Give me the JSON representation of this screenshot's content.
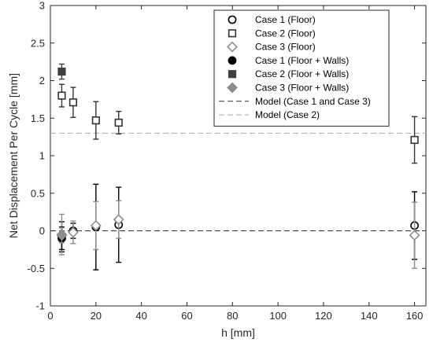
{
  "chart_data": {
    "type": "scatter",
    "xlabel": "h [mm]",
    "ylabel": "Net Displacement Per Cycle [mm]",
    "xlim": [
      0,
      165
    ],
    "ylim": [
      -1,
      3
    ],
    "xticks": [
      "0",
      "20",
      "40",
      "60",
      "80",
      "100",
      "120",
      "140",
      "160"
    ],
    "yticks": [
      "-1",
      "-0.5",
      "0",
      "0.5",
      "1",
      "1.5",
      "2",
      "2.5",
      "3"
    ],
    "grid": false,
    "legend_position": "top-right",
    "series": [
      {
        "name": "Case 1 (Floor)",
        "marker": "circle-open",
        "color": "#000000",
        "points": [
          {
            "x": 5,
            "y": -0.08,
            "err": 0.2
          },
          {
            "x": 10,
            "y": 0.0,
            "err": 0.1
          },
          {
            "x": 20,
            "y": 0.05,
            "err": 0.57
          },
          {
            "x": 30,
            "y": 0.08,
            "err": 0.5
          },
          {
            "x": 160,
            "y": 0.07,
            "err": 0.45
          }
        ]
      },
      {
        "name": "Case 2 (Floor)",
        "marker": "square-open",
        "color": "#333333",
        "points": [
          {
            "x": 5,
            "y": 1.8,
            "err": 0.15
          },
          {
            "x": 10,
            "y": 1.71,
            "err": 0.2
          },
          {
            "x": 20,
            "y": 1.47,
            "err": 0.25
          },
          {
            "x": 30,
            "y": 1.44,
            "err": 0.15
          },
          {
            "x": 160,
            "y": 1.21,
            "err": 0.31
          }
        ]
      },
      {
        "name": "Case 3 (Floor)",
        "marker": "diamond-open",
        "color": "#8c8c8c",
        "points": [
          {
            "x": 5,
            "y": -0.05,
            "err": 0.27
          },
          {
            "x": 10,
            "y": -0.02,
            "err": 0.15
          },
          {
            "x": 20,
            "y": 0.07,
            "err": 0.32
          },
          {
            "x": 30,
            "y": 0.15,
            "err": 0.25
          },
          {
            "x": 160,
            "y": -0.06,
            "err": 0.44
          }
        ]
      },
      {
        "name": "Case 1 (Floor + Walls)",
        "marker": "circle-filled",
        "color": "#000000",
        "points": [
          {
            "x": 5,
            "y": -0.1,
            "err": 0.15
          }
        ]
      },
      {
        "name": "Case 2 (Floor + Walls)",
        "marker": "square-filled",
        "color": "#404040",
        "points": [
          {
            "x": 5,
            "y": 2.12,
            "err": 0.1
          }
        ]
      },
      {
        "name": "Case 3 (Floor + Walls)",
        "marker": "diamond-filled",
        "color": "#8c8c8c",
        "points": [
          {
            "x": 5,
            "y": -0.06,
            "err": 0.1
          }
        ]
      }
    ],
    "models": [
      {
        "name": "Model (Case 1 and Case 3)",
        "y": 0,
        "color": "#333333"
      },
      {
        "name": "Model (Case 2)",
        "y": 1.3,
        "color": "#a6a6a6"
      }
    ]
  }
}
